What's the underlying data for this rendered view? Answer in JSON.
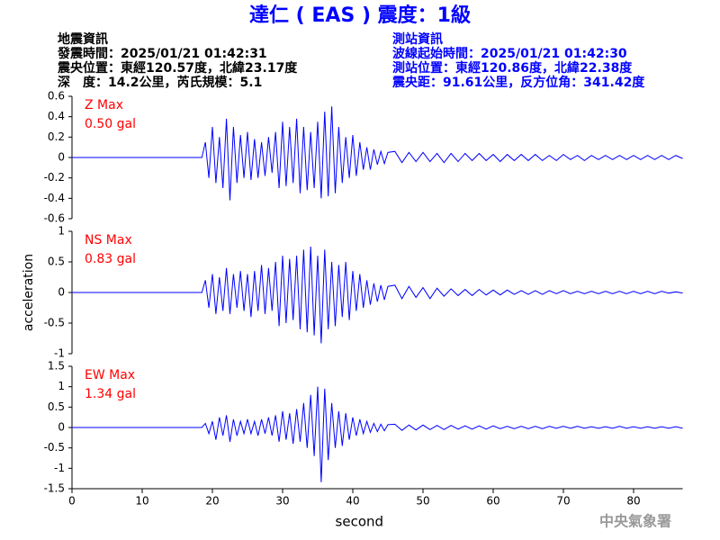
{
  "header": {
    "title": "達仁 ( EAS ) 震度：1級",
    "left_lines": [
      "地震資訊",
      "發震時間：2025/01/21 01:42:31",
      "震央位置：東經120.57度，北緯23.17度",
      "深　度：14.2公里，芮氏規模：5.1"
    ],
    "right_lines": [
      "測站資訊",
      "波線起始時間：2025/01/21 01:42:30",
      "測站位置：東經120.86度，北緯22.38度",
      "震央距：91.61公里，反方位角：341.42度"
    ]
  },
  "footer": "中央氣象署",
  "chart_data": [
    {
      "type": "line",
      "label": "Z Max",
      "max_label": "0.50 gal",
      "color": "#0000ff",
      "x": [
        0,
        18.5,
        19,
        19.5,
        20,
        20.5,
        21,
        21.5,
        22,
        22.5,
        23,
        23.5,
        24,
        24.5,
        25,
        25.5,
        26,
        26.5,
        27,
        27.5,
        28,
        28.5,
        29,
        29.5,
        30,
        30.5,
        31,
        31.5,
        32,
        32.5,
        33,
        33.5,
        34,
        34.5,
        35,
        35.5,
        36,
        36.5,
        37,
        37.5,
        38,
        38.5,
        39,
        39.5,
        40,
        40.5,
        41,
        41.5,
        42,
        42.5,
        43,
        43.5,
        44,
        44.5,
        45,
        46,
        47,
        48,
        49,
        50,
        51,
        52,
        53,
        54,
        55,
        56,
        57,
        58,
        59,
        60,
        61,
        62,
        63,
        64,
        65,
        66,
        67,
        68,
        69,
        70,
        71,
        72,
        73,
        74,
        75,
        76,
        77,
        78,
        79,
        80,
        81,
        82,
        83,
        84,
        85,
        86,
        87
      ],
      "values": [
        0,
        0,
        0.15,
        -0.2,
        0.3,
        -0.25,
        0.2,
        -0.3,
        0.38,
        -0.42,
        0.3,
        -0.25,
        0.22,
        -0.2,
        0.25,
        -0.22,
        0.18,
        -0.2,
        0.15,
        -0.18,
        0.2,
        -0.15,
        0.25,
        -0.3,
        0.35,
        -0.28,
        0.3,
        -0.25,
        0.38,
        -0.35,
        0.3,
        -0.32,
        0.25,
        -0.3,
        0.35,
        -0.4,
        0.45,
        -0.38,
        0.5,
        -0.35,
        0.3,
        -0.25,
        0.2,
        -0.2,
        0.22,
        -0.18,
        0.15,
        -0.12,
        0.1,
        -0.12,
        0.08,
        -0.07,
        0.06,
        -0.06,
        0.05,
        0.06,
        -0.05,
        0.05,
        -0.04,
        0.05,
        -0.04,
        0.04,
        -0.05,
        0.04,
        -0.04,
        0.04,
        -0.03,
        0.04,
        -0.03,
        0.03,
        -0.04,
        0.03,
        -0.03,
        0.03,
        -0.03,
        0.03,
        -0.03,
        0.02,
        -0.03,
        0.03,
        -0.02,
        0.02,
        -0.03,
        0.02,
        -0.02,
        0.02,
        -0.02,
        0.02,
        -0.02,
        0.02,
        -0.02,
        0.02,
        -0.02,
        0.02,
        -0.02,
        0.02,
        -0.01
      ],
      "xlim": [
        0,
        87
      ],
      "ylim": [
        -0.6,
        0.6
      ],
      "yticks": [
        0.6,
        0.4,
        0.2,
        0,
        -0.2,
        -0.4,
        -0.6
      ]
    },
    {
      "type": "line",
      "label": "NS Max",
      "max_label": "0.83 gal",
      "color": "#0000ff",
      "ylabel": "acceleration",
      "x": [
        0,
        18.5,
        19,
        19.5,
        20,
        20.5,
        21,
        21.5,
        22,
        22.5,
        23,
        23.5,
        24,
        24.5,
        25,
        25.5,
        26,
        26.5,
        27,
        27.5,
        28,
        28.5,
        29,
        29.5,
        30,
        30.5,
        31,
        31.5,
        32,
        32.5,
        33,
        33.5,
        34,
        34.5,
        35,
        35.5,
        36,
        36.5,
        37,
        37.5,
        38,
        38.5,
        39,
        39.5,
        40,
        40.5,
        41,
        41.5,
        42,
        42.5,
        43,
        43.5,
        44,
        44.5,
        45,
        46,
        47,
        48,
        49,
        50,
        51,
        52,
        53,
        54,
        55,
        56,
        57,
        58,
        59,
        60,
        61,
        62,
        63,
        64,
        65,
        66,
        67,
        68,
        69,
        70,
        71,
        72,
        73,
        74,
        75,
        76,
        77,
        78,
        79,
        80,
        81,
        82,
        83,
        84,
        85,
        86,
        87
      ],
      "values": [
        0,
        0,
        0.2,
        -0.25,
        0.3,
        -0.35,
        0.25,
        -0.3,
        0.4,
        -0.35,
        0.3,
        -0.25,
        0.35,
        -0.3,
        0.3,
        -0.4,
        0.35,
        -0.3,
        0.45,
        -0.35,
        0.4,
        -0.3,
        0.5,
        -0.55,
        0.6,
        -0.5,
        0.55,
        -0.45,
        0.6,
        -0.6,
        0.7,
        -0.65,
        0.75,
        -0.7,
        0.6,
        -0.83,
        0.7,
        -0.6,
        0.5,
        -0.55,
        0.45,
        -0.4,
        0.5,
        -0.45,
        0.35,
        -0.3,
        0.3,
        -0.25,
        0.2,
        -0.2,
        0.15,
        -0.15,
        0.12,
        -0.12,
        0.1,
        0.12,
        -0.1,
        0.1,
        -0.08,
        0.08,
        -0.1,
        0.07,
        -0.06,
        0.06,
        -0.05,
        0.05,
        -0.05,
        0.05,
        -0.04,
        0.04,
        -0.04,
        0.04,
        -0.03,
        0.03,
        -0.03,
        0.03,
        -0.03,
        0.03,
        -0.02,
        0.03,
        -0.02,
        0.02,
        -0.02,
        0.02,
        -0.02,
        0.02,
        -0.02,
        0.02,
        -0.02,
        0.02,
        -0.02,
        0.02,
        -0.02,
        0.02,
        -0.01,
        0.01,
        -0.01
      ],
      "xlim": [
        0,
        87
      ],
      "ylim": [
        -1,
        1
      ],
      "yticks": [
        1,
        0.5,
        0,
        -0.5,
        -1
      ]
    },
    {
      "type": "line",
      "label": "EW Max",
      "max_label": "1.34 gal",
      "color": "#0000ff",
      "xlabel": "second",
      "x": [
        0,
        18.5,
        19,
        19.5,
        20,
        20.5,
        21,
        21.5,
        22,
        22.5,
        23,
        23.5,
        24,
        24.5,
        25,
        25.5,
        26,
        26.5,
        27,
        27.5,
        28,
        28.5,
        29,
        29.5,
        30,
        30.5,
        31,
        31.5,
        32,
        32.5,
        33,
        33.5,
        34,
        34.5,
        35,
        35.5,
        36,
        36.5,
        37,
        37.5,
        38,
        38.5,
        39,
        39.5,
        40,
        40.5,
        41,
        41.5,
        42,
        42.5,
        43,
        43.5,
        44,
        44.5,
        45,
        46,
        47,
        48,
        49,
        50,
        51,
        52,
        53,
        54,
        55,
        56,
        57,
        58,
        59,
        60,
        61,
        62,
        63,
        64,
        65,
        66,
        67,
        68,
        69,
        70,
        71,
        72,
        73,
        74,
        75,
        76,
        77,
        78,
        79,
        80,
        81,
        82,
        83,
        84,
        85,
        86,
        87
      ],
      "values": [
        0,
        0,
        0.1,
        -0.15,
        0.15,
        -0.3,
        0.25,
        -0.2,
        0.3,
        -0.35,
        0.2,
        -0.2,
        0.15,
        -0.15,
        0.2,
        -0.15,
        0.15,
        -0.2,
        0.2,
        -0.15,
        0.25,
        -0.2,
        0.3,
        -0.35,
        0.4,
        -0.3,
        0.35,
        -0.4,
        0.45,
        -0.35,
        0.6,
        -0.5,
        0.8,
        -0.7,
        1.0,
        -1.34,
        0.95,
        -0.8,
        0.6,
        -0.5,
        0.4,
        -0.45,
        0.35,
        -0.3,
        0.25,
        -0.2,
        0.2,
        -0.15,
        0.15,
        -0.12,
        0.1,
        -0.1,
        0.08,
        -0.08,
        0.07,
        0.08,
        -0.07,
        0.06,
        -0.06,
        0.06,
        -0.05,
        0.05,
        -0.05,
        0.05,
        -0.04,
        0.04,
        -0.04,
        0.04,
        -0.04,
        0.04,
        -0.03,
        0.03,
        -0.03,
        0.03,
        -0.03,
        0.03,
        -0.03,
        0.03,
        -0.02,
        0.03,
        -0.02,
        0.03,
        -0.02,
        0.02,
        -0.02,
        0.02,
        -0.02,
        0.03,
        -0.02,
        0.02,
        -0.02,
        0.02,
        -0.02,
        0.02,
        -0.02,
        0.02,
        -0.02
      ],
      "xlim": [
        0,
        87
      ],
      "ylim": [
        -1.5,
        1.5
      ],
      "yticks": [
        1.5,
        1,
        0.5,
        0,
        -0.5,
        -1,
        -1.5
      ],
      "xticks": [
        0,
        10,
        20,
        30,
        40,
        50,
        60,
        70,
        80
      ]
    }
  ]
}
